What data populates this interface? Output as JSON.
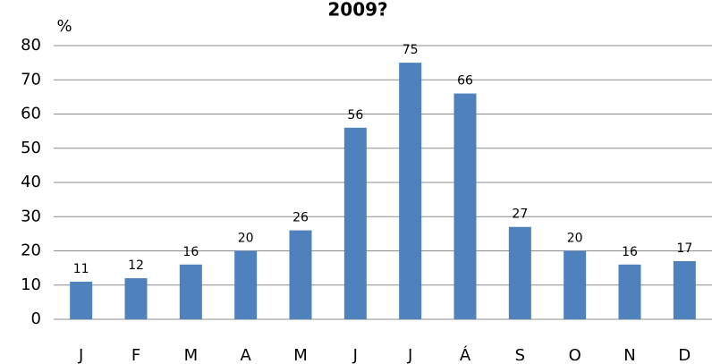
{
  "chart_data": {
    "type": "bar",
    "title": "2009?",
    "y_label": "%",
    "categories": [
      "J",
      "F",
      "M",
      "A",
      "M",
      "J",
      "J",
      "Á",
      "S",
      "O",
      "N",
      "D"
    ],
    "values": [
      11,
      12,
      16,
      20,
      26,
      56,
      75,
      66,
      27,
      20,
      16,
      17
    ],
    "color": "#4f81bd",
    "ylim": [
      0,
      80
    ],
    "yticks": [
      0,
      10,
      20,
      30,
      40,
      50,
      60,
      70,
      80
    ],
    "grid": true
  }
}
